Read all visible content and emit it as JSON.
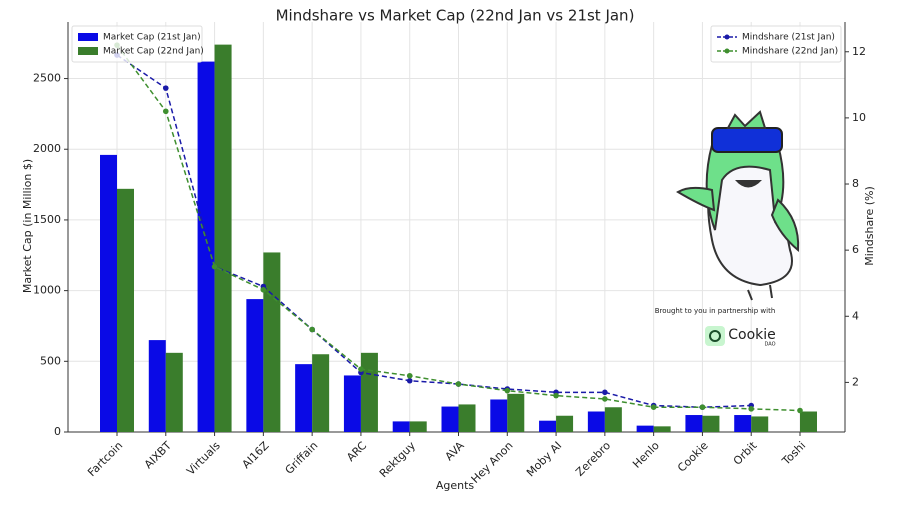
{
  "chart_data": {
    "type": "bar",
    "title": "Mindshare vs Market Cap (22nd Jan vs 21st Jan)",
    "x_label": "Agents",
    "y_label": "Market Cap (in Million $)",
    "y2_label": "Mindshare (%)",
    "categories": [
      "Fartcoin",
      "AIXBT",
      "Virtuals",
      "AI16Z",
      "Griffain",
      "ARC",
      "Rektguy",
      "AVA",
      "Hey Anon",
      "Moby AI",
      "Zerebro",
      "Henlo",
      "Cookie",
      "Orbit",
      "Toshi"
    ],
    "series": [
      {
        "name": "Market Cap (21st Jan)",
        "type": "bar",
        "color": "#0a0ae6",
        "values": [
          1960,
          650,
          2620,
          940,
          480,
          400,
          75,
          180,
          230,
          80,
          145,
          45,
          120,
          120,
          null
        ]
      },
      {
        "name": "Market Cap (22nd Jan)",
        "type": "bar",
        "color": "#3a7d2c",
        "values": [
          1720,
          560,
          2740,
          1270,
          550,
          560,
          75,
          195,
          270,
          115,
          175,
          40,
          115,
          110,
          145
        ]
      },
      {
        "name": "Mindshare (21st Jan)",
        "type": "line",
        "axis": "y2",
        "color": "#1a1aa8",
        "values": [
          11.9,
          10.9,
          5.5,
          4.9,
          3.6,
          2.3,
          2.05,
          1.95,
          1.8,
          1.7,
          1.7,
          1.3,
          1.25,
          1.3,
          null
        ]
      },
      {
        "name": "Mindshare (22nd Jan)",
        "type": "line",
        "axis": "y2",
        "color": "#3f8f2f",
        "values": [
          12.2,
          10.2,
          5.5,
          4.8,
          3.6,
          2.4,
          2.2,
          1.95,
          1.75,
          1.6,
          1.5,
          1.25,
          1.25,
          1.2,
          1.15
        ]
      }
    ],
    "ylim": [
      0,
      2900
    ],
    "yticks": [
      0,
      500,
      1000,
      1500,
      2000,
      2500
    ],
    "y2lim": [
      0.5,
      12.9
    ],
    "y2ticks": [
      2,
      4,
      6,
      8,
      10,
      12
    ],
    "grid": true,
    "legend": "upper left",
    "legend2": "upper right",
    "annotations": [
      "Brought to you in partnership with",
      "Cookie",
      "DAO"
    ]
  }
}
